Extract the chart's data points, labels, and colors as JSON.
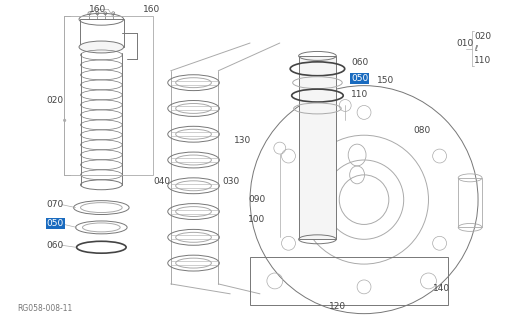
{
  "bg_color": "#ffffff",
  "label_color": "#444444",
  "line_color": "#aaaaaa",
  "dark_line": "#777777",
  "highlight_color": "#1a6bbf",
  "reference_code": "RG058-008-11",
  "figsize": [
    5.1,
    3.2
  ],
  "dpi": 100
}
